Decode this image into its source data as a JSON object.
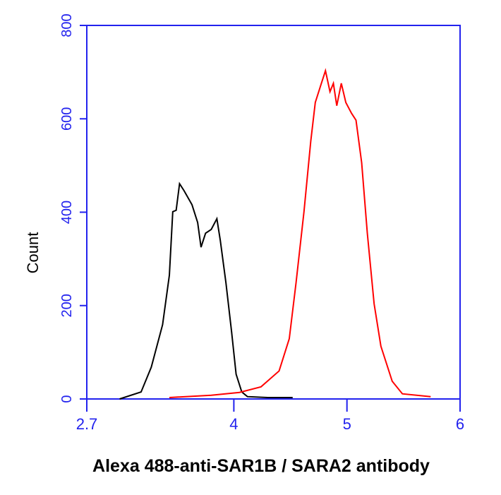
{
  "chart_data": {
    "type": "line",
    "xlabel": "Alexa 488-anti-SAR1B / SARA2 antibody",
    "ylabel": "Count",
    "xlim": [
      2.7,
      6
    ],
    "xticks": [
      2.7,
      4,
      5,
      6
    ],
    "ylim": [
      0,
      800
    ],
    "yticks": [
      0,
      200,
      400,
      600,
      800
    ],
    "axis_color": "#2222ee",
    "series": [
      {
        "color": "#000000",
        "x": [
          2.99,
          3.18,
          3.27,
          3.37,
          3.43,
          3.46,
          3.49,
          3.52,
          3.56,
          3.63,
          3.68,
          3.71,
          3.75,
          3.8,
          3.85,
          3.88,
          3.93,
          3.98,
          4.02,
          4.07,
          4.12,
          4.3,
          4.52
        ],
        "values": [
          0,
          15,
          68,
          159,
          265,
          401,
          404,
          461,
          446,
          416,
          378,
          325,
          355,
          363,
          386,
          340,
          249,
          144,
          53,
          15,
          5,
          3,
          3
        ]
      },
      {
        "color": "#ff0000",
        "x": [
          3.43,
          3.8,
          4.05,
          4.24,
          4.4,
          4.49,
          4.55,
          4.62,
          4.68,
          4.72,
          4.77,
          4.81,
          4.85,
          4.88,
          4.91,
          4.95,
          4.99,
          5.04,
          5.08,
          5.13,
          5.18,
          5.24,
          5.3,
          5.4,
          5.49,
          5.74
        ],
        "values": [
          3,
          8,
          14,
          26,
          60,
          129,
          249,
          401,
          552,
          635,
          673,
          703,
          658,
          676,
          628,
          676,
          635,
          612,
          597,
          506,
          355,
          204,
          113,
          38,
          11,
          5
        ]
      }
    ]
  }
}
